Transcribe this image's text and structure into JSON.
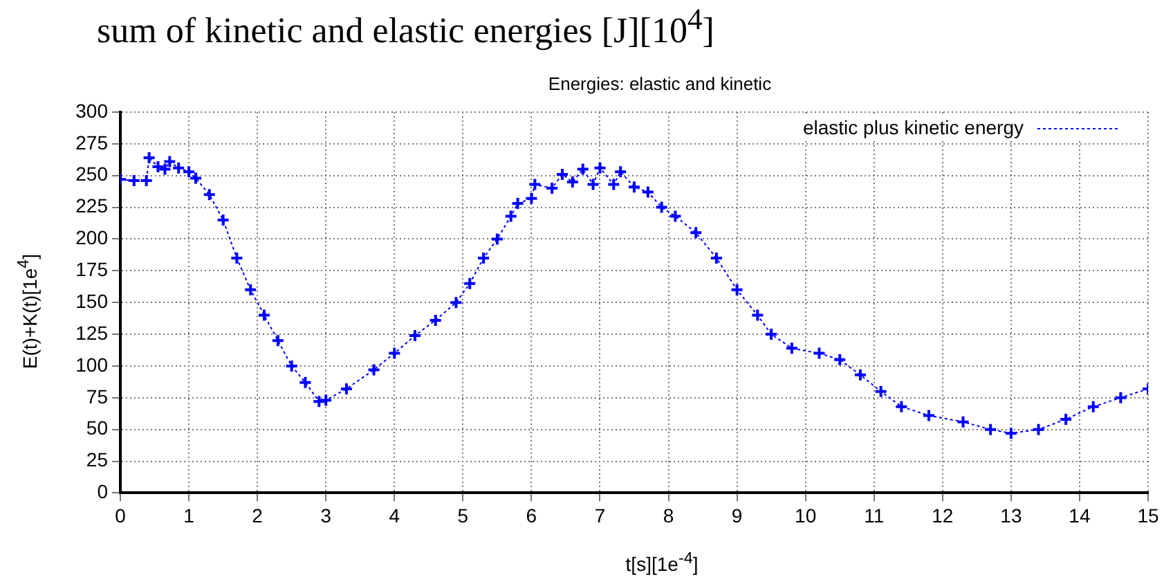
{
  "chart_data": {
    "type": "line",
    "title": "sum of kinetic and elastic energies [J][10$^{4}$]",
    "subtitle": "Energies: elastic and kinetic",
    "xlabel": "t[s][1e$^{-4}$]",
    "ylabel": "E(t)+K(t)[1e$^{4}$]",
    "series": [
      {
        "name": "elastic plus kinetic energy",
        "color": "#0000ff",
        "x": [
          0,
          0.2,
          0.38,
          0.42,
          0.55,
          0.65,
          0.72,
          0.85,
          1.0,
          1.1,
          1.3,
          1.5,
          1.7,
          1.9,
          2.1,
          2.3,
          2.5,
          2.7,
          2.9,
          3.0,
          3.3,
          3.7,
          4.0,
          4.3,
          4.6,
          4.9,
          5.1,
          5.3,
          5.5,
          5.7,
          5.8,
          6.0,
          6.05,
          6.3,
          6.45,
          6.6,
          6.75,
          6.9,
          7.0,
          7.2,
          7.3,
          7.5,
          7.7,
          7.9,
          8.1,
          8.4,
          8.7,
          9.0,
          9.3,
          9.5,
          9.8,
          10.2,
          10.5,
          10.8,
          11.1,
          11.4,
          11.8,
          12.3,
          12.7,
          13.0,
          13.4,
          13.8,
          14.2,
          14.6,
          15.0
        ],
        "values": [
          247,
          246,
          246,
          264,
          257,
          255,
          261,
          256,
          253,
          248,
          235,
          215,
          185,
          160,
          140,
          120,
          100,
          87,
          72,
          73,
          82,
          97,
          110,
          124,
          136,
          150,
          165,
          185,
          200,
          218,
          228,
          232,
          243,
          240,
          251,
          245,
          255,
          243,
          256,
          243,
          253,
          241,
          237,
          225,
          218,
          205,
          185,
          160,
          140,
          125,
          114,
          110,
          105,
          93,
          80,
          68,
          61,
          56,
          50,
          47,
          50,
          58,
          68,
          75,
          82
        ]
      }
    ],
    "xlim": [
      0,
      15
    ],
    "xticks": [
      0,
      1,
      2,
      3,
      4,
      5,
      6,
      7,
      8,
      9,
      10,
      11,
      12,
      13,
      14,
      15
    ],
    "ylim": [
      0,
      300
    ],
    "yticks": [
      0,
      25,
      50,
      75,
      100,
      125,
      150,
      175,
      200,
      225,
      250,
      275,
      300
    ],
    "grid": true,
    "legend": "top right",
    "marker": "cross",
    "line_style": "dotted"
  }
}
